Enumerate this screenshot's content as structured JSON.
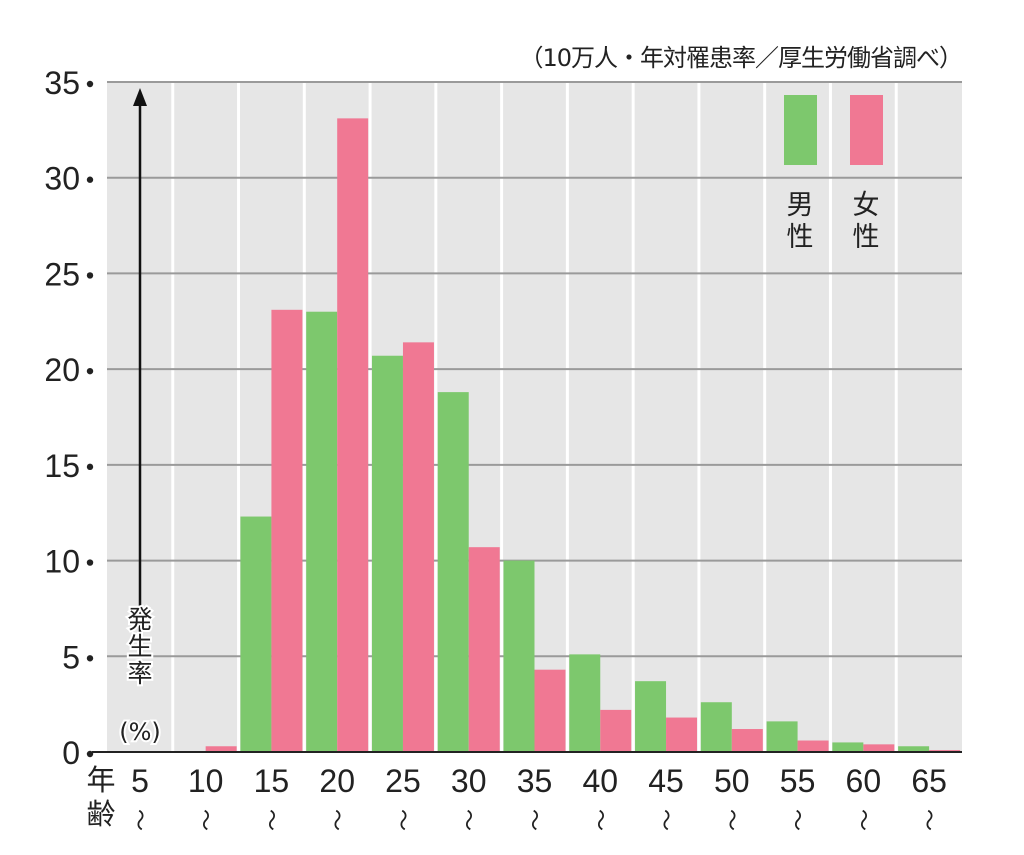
{
  "chart_data": {
    "type": "bar",
    "source_note": "（10万人・年対罹患率／厚生労働省調べ）",
    "ylabel": "発生率(%)",
    "xlabel": "年齢",
    "ylim": [
      0,
      35
    ],
    "yticks": [
      0,
      5,
      10,
      15,
      20,
      25,
      30,
      35
    ],
    "grid": true,
    "legend_position": "top-right",
    "categories": [
      "5",
      "10",
      "15",
      "20",
      "25",
      "30",
      "35",
      "40",
      "45",
      "50",
      "55",
      "60",
      "65"
    ],
    "range_mark": "〜",
    "series": [
      {
        "name": "男性",
        "color": "#7dc86d",
        "values": [
          0,
          0,
          12.3,
          23.0,
          20.7,
          18.8,
          10.0,
          5.1,
          3.7,
          2.6,
          1.6,
          0.5,
          0.3
        ]
      },
      {
        "name": "女性",
        "color": "#f07893",
        "values": [
          0,
          0.3,
          23.1,
          33.1,
          21.4,
          10.7,
          4.3,
          2.2,
          1.8,
          1.2,
          0.6,
          0.4,
          0.1
        ]
      }
    ]
  }
}
